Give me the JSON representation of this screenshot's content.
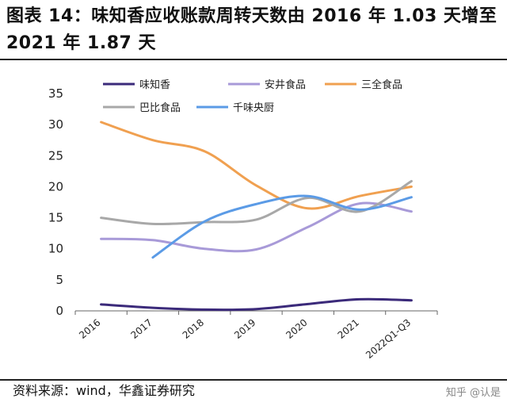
{
  "title": "图表 14：味知香应收账款周转天数由 2016 年 1.03 天增至 2021 年 1.87 天",
  "source": "资料来源：wind，华鑫证券研究",
  "watermark": "知乎 @认是",
  "chart_data": {
    "type": "line",
    "categories": [
      "2016",
      "2017",
      "2018",
      "2019",
      "2020",
      "2021",
      "2022Q1-Q3"
    ],
    "ylim": [
      0,
      35
    ],
    "yticks": [
      0,
      5,
      10,
      15,
      20,
      25,
      30,
      35
    ],
    "grid": false,
    "legend_position": "top",
    "series": [
      {
        "name": "味知香",
        "color": "#3b2a7a",
        "values": [
          1.03,
          0.5,
          0.2,
          0.3,
          1.1,
          1.87,
          1.7
        ]
      },
      {
        "name": "安井食品",
        "color": "#a89ad8",
        "values": [
          11.6,
          11.4,
          10.0,
          9.9,
          13.5,
          17.3,
          16.0
        ]
      },
      {
        "name": "三全食品",
        "color": "#f0a050",
        "values": [
          30.4,
          27.5,
          25.7,
          20.2,
          16.5,
          18.5,
          20.0
        ]
      },
      {
        "name": "巴比食品",
        "color": "#a8a8a8",
        "values": [
          15.0,
          14.0,
          14.3,
          14.7,
          18.2,
          16.0,
          20.9
        ]
      },
      {
        "name": "千味央厨",
        "color": "#5b9be6",
        "values": [
          null,
          8.6,
          14.4,
          17.2,
          18.5,
          16.3,
          18.3
        ]
      }
    ]
  }
}
